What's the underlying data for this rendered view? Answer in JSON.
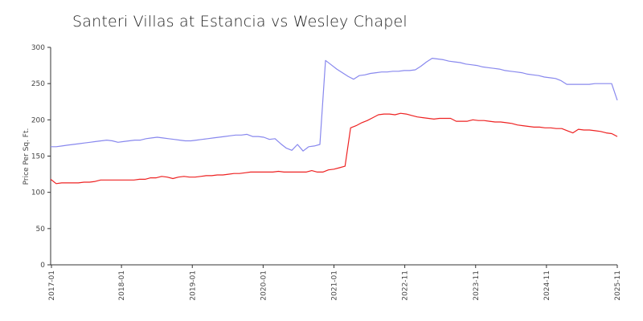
{
  "chart_data": {
    "type": "line",
    "title": "Santeri Villas at Estancia vs Wesley Chapel",
    "ylabel": "Price Per Sq. Ft.",
    "xlabel": "",
    "ylim": [
      0,
      300
    ],
    "yticks": [
      0,
      50,
      100,
      150,
      200,
      250,
      300
    ],
    "xticks": [
      "2017-01",
      "2018-01",
      "2019-01",
      "2020-01",
      "2021-01",
      "2022-11",
      "2023-11",
      "2024-11",
      "2025-11"
    ],
    "grid": false,
    "legend": "none",
    "series": [
      {
        "color": "#8888ee",
        "values": [
          163,
          163,
          164,
          165,
          166,
          167,
          168,
          169,
          170,
          171,
          172,
          171,
          169,
          170,
          171,
          172,
          172,
          174,
          175,
          176,
          175,
          174,
          173,
          172,
          171,
          171,
          172,
          173,
          174,
          175,
          176,
          177,
          178,
          179,
          179,
          180,
          177,
          177,
          176,
          173,
          174,
          167,
          161,
          158,
          166,
          157,
          163,
          164,
          166,
          282,
          276,
          270,
          265,
          260,
          256,
          261,
          262,
          264,
          265,
          266,
          266,
          267,
          267,
          268,
          268,
          269,
          274,
          280,
          285,
          284,
          283,
          281,
          280,
          279,
          277,
          276,
          275,
          273,
          272,
          271,
          270,
          268,
          267,
          266,
          265,
          263,
          262,
          261,
          259,
          258,
          257,
          254,
          249,
          249,
          249,
          249,
          249,
          250,
          250,
          250,
          250,
          227
        ]
      },
      {
        "color": "#ee2222",
        "values": [
          118,
          112,
          113,
          113,
          113,
          113,
          114,
          114,
          115,
          117,
          117,
          117,
          117,
          117,
          117,
          117,
          118,
          118,
          120,
          120,
          122,
          121,
          119,
          121,
          122,
          121,
          121,
          122,
          123,
          123,
          124,
          124,
          125,
          126,
          126,
          127,
          128,
          128,
          128,
          128,
          128,
          129,
          128,
          128,
          128,
          128,
          128,
          130,
          128,
          128,
          131,
          132,
          134,
          136,
          189,
          192,
          196,
          199,
          203,
          207,
          208,
          208,
          207,
          209,
          208,
          206,
          204,
          203,
          202,
          201,
          202,
          202,
          202,
          198,
          198,
          198,
          200,
          199,
          199,
          198,
          197,
          197,
          196,
          195,
          193,
          192,
          191,
          190,
          190,
          189,
          189,
          188,
          188,
          185,
          182,
          187,
          186,
          186,
          185,
          184,
          182,
          181,
          177
        ]
      }
    ]
  }
}
